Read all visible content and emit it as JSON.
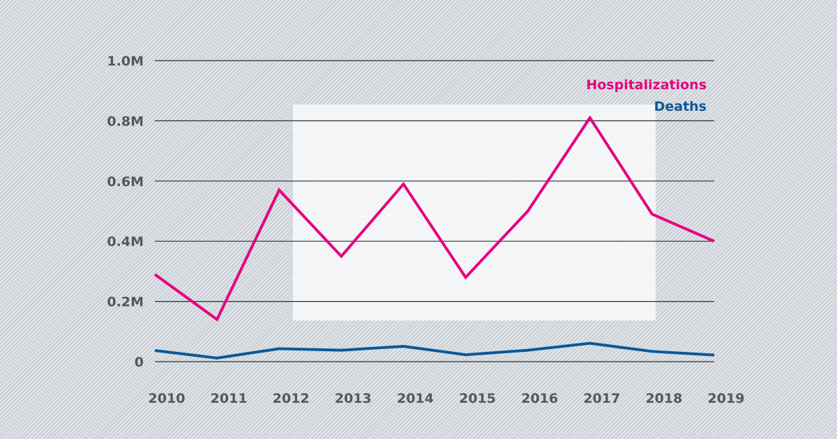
{
  "chart_data": {
    "type": "line",
    "x": [
      "2010",
      "2011",
      "2012",
      "2013",
      "2014",
      "2015",
      "2016",
      "2017",
      "2018",
      "2019"
    ],
    "series": [
      {
        "name": "Hospitalizations",
        "color": "#e6007e",
        "values": [
          290000,
          140000,
          570000,
          350000,
          590000,
          280000,
          500000,
          810000,
          490000,
          400000
        ]
      },
      {
        "name": "Deaths",
        "color": "#0b5899",
        "values": [
          37000,
          12000,
          43000,
          38000,
          51000,
          23000,
          38000,
          61000,
          34000,
          22000
        ]
      }
    ],
    "ylim": [
      0,
      1000000
    ],
    "yticks": [
      0,
      200000,
      400000,
      600000,
      800000,
      1000000
    ],
    "ytick_labels": [
      "0",
      "0.2M",
      "0.4M",
      "0.6M",
      "0.8M",
      "1.0M"
    ],
    "grid": "horizontal",
    "legend": "top-right"
  }
}
